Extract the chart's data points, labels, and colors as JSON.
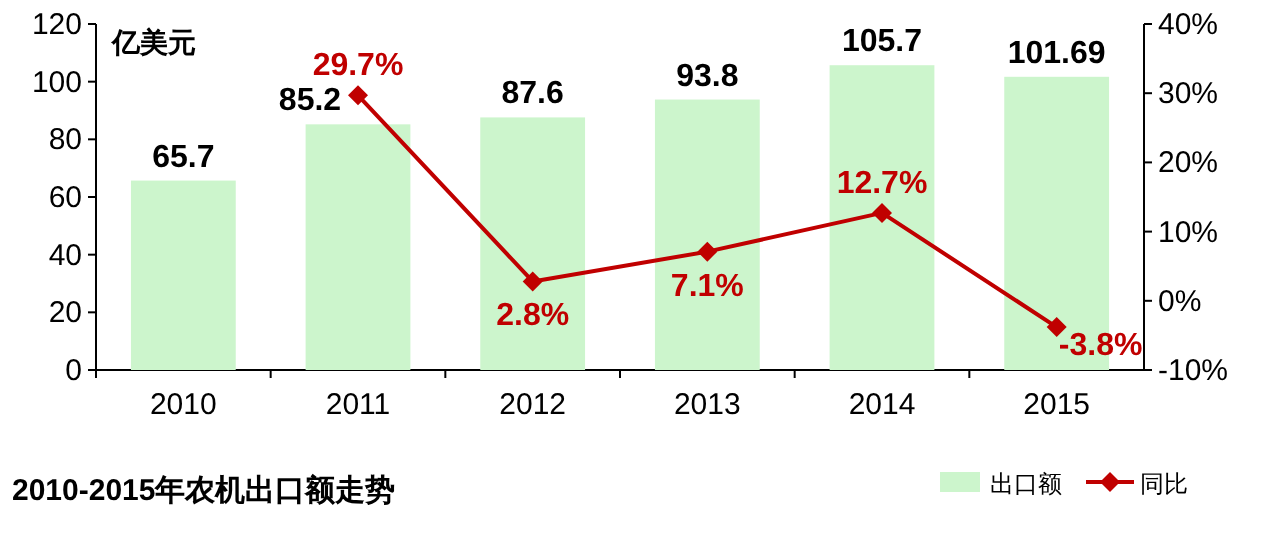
{
  "chart_data": {
    "type": "bar",
    "title": "2010-2015年农机出口额走势",
    "ylabel": "亿美元",
    "categories": [
      "2010",
      "2011",
      "2012",
      "2013",
      "2014",
      "2015"
    ],
    "series": [
      {
        "name": "出口额",
        "color": "#ccf5cc",
        "values": [
          65.7,
          85.2,
          87.6,
          93.8,
          105.7,
          101.69
        ],
        "value_labels": [
          "65.7",
          "85.2",
          "87.6",
          "93.8",
          "105.7",
          "101.69"
        ]
      },
      {
        "name": "同比",
        "type": "line",
        "axis": "y2",
        "color": "#c00000",
        "values": [
          null,
          29.7,
          2.8,
          7.1,
          12.7,
          -3.8
        ],
        "value_labels": [
          null,
          "29.7%",
          "2.8%",
          "7.1%",
          "12.7%",
          "-3.8%"
        ]
      }
    ],
    "marker": "diamond",
    "ylim": [
      0,
      120
    ],
    "yticks": [
      0,
      20,
      40,
      60,
      80,
      100,
      120
    ],
    "y2lim": [
      -10,
      40
    ],
    "y2ticks": [
      {
        "value": -10,
        "label": "-10%"
      },
      {
        "value": 0,
        "label": "0%"
      },
      {
        "value": 10,
        "label": "10%"
      },
      {
        "value": 20,
        "label": "20%"
      },
      {
        "value": 30,
        "label": "30%"
      },
      {
        "value": 40,
        "label": "40%"
      }
    ],
    "legend": "bottom right",
    "grid": false
  }
}
